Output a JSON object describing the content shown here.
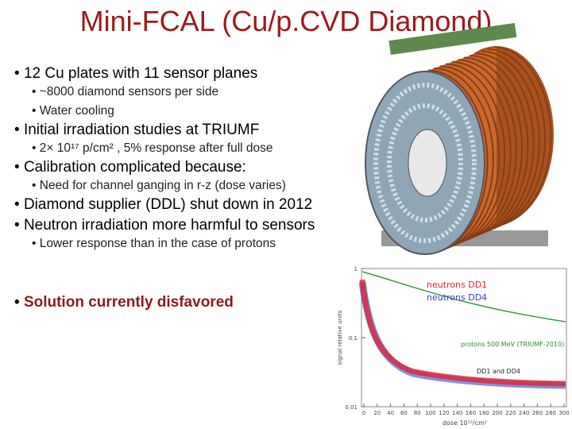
{
  "title": "Mini-FCAL (Cu/p.CVD Diamond)",
  "bullets": [
    {
      "text": "12 Cu plates with 11 sensor planes",
      "children": [
        "~8000 diamond sensors per side",
        "Water cooling"
      ]
    },
    {
      "text": "Initial irradiation studies at TRIUMF",
      "children": [
        "2× 10¹⁷ p/cm² , 5% response after full dose"
      ]
    },
    {
      "text": "Calibration complicated because:",
      "children": [
        "Need for channel ganging in r-z (dose varies)"
      ]
    },
    {
      "text": "Diamond supplier (DDL) shut down in 2012",
      "children": []
    },
    {
      "text": "Neutron irradiation more harmful to sensors",
      "children": [
        "Lower response than in the case of protons"
      ]
    }
  ],
  "conclusion": "Solution currently disfavored",
  "plot": {
    "legend": [
      "neutrons DD1",
      "neutrons DD4"
    ],
    "annotations": [
      "protons 500 MeV (TRIUMF-2010)",
      "DD1 and DD4"
    ],
    "ylabel": "signal relative units",
    "xlabel": "dose 10¹⁵/cm²",
    "yticks": [
      1,
      0.1,
      0.01
    ],
    "xticks": [
      0,
      20,
      40,
      60,
      80,
      100,
      120,
      140,
      160,
      180,
      200,
      220,
      240,
      260,
      280,
      300
    ]
  }
}
